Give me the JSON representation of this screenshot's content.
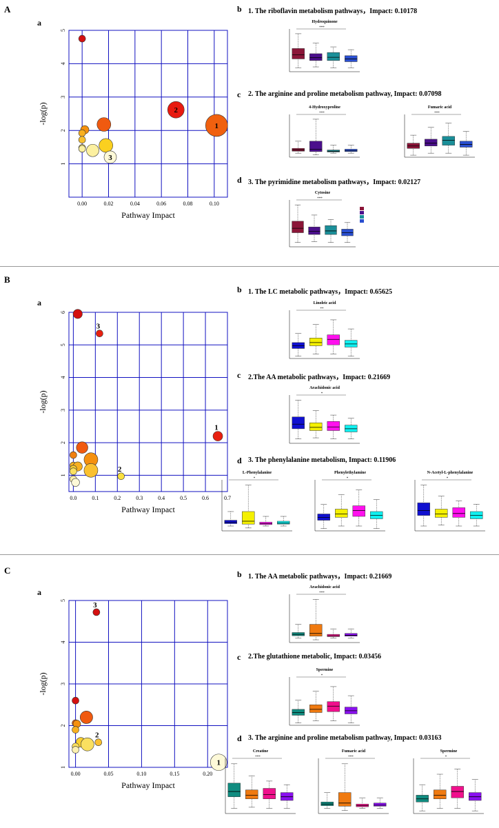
{
  "sections": [
    {
      "letter": "A",
      "scatter_letter": "a",
      "labels": [
        "b",
        "c",
        "d"
      ],
      "titles": [
        "1. The riboflavin metabolism pathways，Impact: 0.10178",
        "2. The arginine and proline metabolism pathway, Impact: 0.07098",
        "3. The pyrimidine metabolism pathways，Impact: 0.02127"
      ],
      "boxplots": [
        {
          "title": "Hydroquinone",
          "sig": "***",
          "colors": [
            "#8b1538",
            "#4b0f8c",
            "#1a8f99",
            "#2a4fd0"
          ]
        },
        {
          "title": "4-Hydroxyproline",
          "sig": "***",
          "colors": [
            "#8b1538",
            "#4b0f8c",
            "#1a8f99",
            "#2a4fd0"
          ]
        },
        {
          "title": "Fumaric acid",
          "sig": "***",
          "colors": [
            "#8b1538",
            "#4b0f8c",
            "#1a8f99",
            "#2a4fd0"
          ]
        },
        {
          "title": "Cytosine",
          "sig": "***",
          "colors": [
            "#8b1538",
            "#4b0f8c",
            "#1a8f99",
            "#2a4fd0"
          ]
        }
      ]
    },
    {
      "letter": "B",
      "scatter_letter": "a",
      "labels": [
        "b",
        "c",
        "d"
      ],
      "titles": [
        "1. The LC metabolic pathways，Impact: 0.65625",
        "2.The AA metabolic pathways，Impact: 0.21669",
        "3. The phenylalanine metabolism, Impact: 0.11906"
      ],
      "boxplots": [
        {
          "title": "Linoleic acid",
          "sig": "**",
          "colors": [
            "#1010d0",
            "#f4f000",
            "#ff10ee",
            "#10f0f0"
          ]
        },
        {
          "title": "Arachidonic acid",
          "sig": "*",
          "colors": [
            "#1010d0",
            "#f4f000",
            "#ff10ee",
            "#10f0f0"
          ]
        },
        {
          "title": "L-Phenylalanine",
          "sig": "*",
          "colors": [
            "#1010d0",
            "#f4f000",
            "#ff10ee",
            "#10f0f0"
          ]
        },
        {
          "title": "Phenylethylamine",
          "sig": "*",
          "colors": [
            "#1010d0",
            "#f4f000",
            "#ff10ee",
            "#10f0f0"
          ]
        },
        {
          "title": "N-Acetyl-L-phenylalanine",
          "sig": "*",
          "colors": [
            "#1010d0",
            "#f4f000",
            "#ff10ee",
            "#10f0f0"
          ]
        }
      ]
    },
    {
      "letter": "C",
      "scatter_letter": "a",
      "labels": [
        "b",
        "c",
        "d"
      ],
      "titles": [
        "1. The AA metabolic pathways，Impact: 0.21669",
        "2.The glutathione metabolic, Impact: 0.03456",
        "3. The arginine and proline metabolism pathway, Impact: 0.03163"
      ],
      "boxplots": [
        {
          "title": "Arachidonic acid",
          "sig": "***",
          "colors": [
            "#108c80",
            "#f07a10",
            "#f0108c",
            "#8a10f0"
          ]
        },
        {
          "title": "Spermine",
          "sig": "*",
          "colors": [
            "#108c80",
            "#f07a10",
            "#f0108c",
            "#8a10f0"
          ]
        },
        {
          "title": "Creatine",
          "sig": "***",
          "colors": [
            "#108c80",
            "#f07a10",
            "#f0108c",
            "#8a10f0"
          ]
        },
        {
          "title": "Fumaric acid",
          "sig": "***",
          "colors": [
            "#108c80",
            "#f07a10",
            "#f0108c",
            "#8a10f0"
          ]
        },
        {
          "title": "Spermine",
          "sig": "*",
          "colors": [
            "#108c80",
            "#f07a10",
            "#f0108c",
            "#8a10f0"
          ]
        }
      ]
    }
  ],
  "chart_data": [
    {
      "type": "scatter",
      "xlabel": "Pathway Impact",
      "ylabel": "-log(p)",
      "xlim": [
        -0.01,
        0.11
      ],
      "ylim": [
        0,
        5
      ],
      "xticks": [
        "0.00",
        "0.02",
        "0.04",
        "0.06",
        "0.08",
        "0.10"
      ],
      "yticks": [
        "1",
        "2",
        "3",
        "4",
        "5"
      ],
      "points": [
        {
          "x": 0.0,
          "y": 4.75,
          "color": "#d41010",
          "label": ""
        },
        {
          "x": 0.071,
          "y": 2.62,
          "color": "#e81a10",
          "label": "2"
        },
        {
          "x": 0.1018,
          "y": 2.15,
          "color": "#f0600f",
          "label": "1"
        },
        {
          "x": 0.0165,
          "y": 2.18,
          "color": "#f05a10",
          "label": ""
        },
        {
          "x": 0.002,
          "y": 2.02,
          "color": "#f5900f",
          "label": ""
        },
        {
          "x": 0.0,
          "y": 1.92,
          "color": "#f8b020",
          "label": ""
        },
        {
          "x": 0.0,
          "y": 1.72,
          "color": "#f8c030",
          "label": ""
        },
        {
          "x": 0.018,
          "y": 1.55,
          "color": "#fad020",
          "label": ""
        },
        {
          "x": 0.0,
          "y": 1.48,
          "color": "#fae060",
          "label": ""
        },
        {
          "x": 0.0,
          "y": 1.45,
          "color": "#fbf0a0",
          "label": ""
        },
        {
          "x": 0.008,
          "y": 1.4,
          "color": "#fcf0a0",
          "label": ""
        },
        {
          "x": 0.0213,
          "y": 1.2,
          "color": "#fdf9d8",
          "label": "3"
        }
      ]
    },
    {
      "type": "scatter",
      "xlabel": "Pathway Impact",
      "ylabel": "-log(p)",
      "xlim": [
        -0.02,
        0.7
      ],
      "ylim": [
        0.5,
        6
      ],
      "xticks": [
        "0.0",
        "0.1",
        "0.2",
        "0.3",
        "0.4",
        "0.5",
        "0.6",
        "0.7"
      ],
      "yticks": [
        "1",
        "2",
        "3",
        "4",
        "5",
        "6"
      ],
      "points": [
        {
          "x": 0.02,
          "y": 5.95,
          "color": "#d41010",
          "label": ""
        },
        {
          "x": 0.1191,
          "y": 5.35,
          "color": "#e82010",
          "label": "3"
        },
        {
          "x": 0.6563,
          "y": 2.2,
          "color": "#e82010",
          "label": "1"
        },
        {
          "x": 0.04,
          "y": 1.85,
          "color": "#f05a10",
          "label": ""
        },
        {
          "x": 0.0,
          "y": 1.62,
          "color": "#f08010",
          "label": ""
        },
        {
          "x": 0.08,
          "y": 1.48,
          "color": "#f5900f",
          "label": ""
        },
        {
          "x": 0.0,
          "y": 1.3,
          "color": "#f8b020",
          "label": ""
        },
        {
          "x": 0.02,
          "y": 1.27,
          "color": "#f8b020",
          "label": ""
        },
        {
          "x": 0.0,
          "y": 1.2,
          "color": "#fad030",
          "label": ""
        },
        {
          "x": 0.0,
          "y": 1.12,
          "color": "#fae060",
          "label": ""
        },
        {
          "x": 0.08,
          "y": 1.15,
          "color": "#fac030",
          "label": ""
        },
        {
          "x": 0.2167,
          "y": 0.97,
          "color": "#fae040",
          "label": "2"
        },
        {
          "x": 0.0,
          "y": 0.88,
          "color": "#fcf0b0",
          "label": ""
        },
        {
          "x": 0.01,
          "y": 0.78,
          "color": "#fdf9d8",
          "label": ""
        }
      ]
    },
    {
      "type": "scatter",
      "xlabel": "Pathway Impact",
      "ylabel": "-log(p)",
      "xlim": [
        -0.01,
        0.23
      ],
      "ylim": [
        1,
        5
      ],
      "xticks": [
        "0.00",
        "0.05",
        "0.10",
        "0.15",
        "0.20"
      ],
      "yticks": [
        "1",
        "2",
        "3",
        "4",
        "5"
      ],
      "points": [
        {
          "x": 0.0316,
          "y": 4.72,
          "color": "#d41010",
          "label": "3"
        },
        {
          "x": 0.0,
          "y": 2.6,
          "color": "#d41010",
          "label": ""
        },
        {
          "x": 0.0165,
          "y": 2.2,
          "color": "#f05a10",
          "label": ""
        },
        {
          "x": 0.0,
          "y": 2.06,
          "color": "#f06010",
          "label": ""
        },
        {
          "x": 0.002,
          "y": 2.04,
          "color": "#f5900f",
          "label": ""
        },
        {
          "x": 0.0,
          "y": 1.9,
          "color": "#f8b020",
          "label": ""
        },
        {
          "x": 0.0346,
          "y": 1.6,
          "color": "#fac030",
          "label": "2"
        },
        {
          "x": 0.008,
          "y": 1.6,
          "color": "#fad030",
          "label": ""
        },
        {
          "x": 0.018,
          "y": 1.55,
          "color": "#fae060",
          "label": ""
        },
        {
          "x": 0.0,
          "y": 1.5,
          "color": "#fae060",
          "label": ""
        },
        {
          "x": 0.0,
          "y": 1.42,
          "color": "#fcf0b0",
          "label": ""
        },
        {
          "x": 0.2167,
          "y": 1.12,
          "color": "#fdf9d8",
          "label": "1"
        }
      ]
    }
  ]
}
